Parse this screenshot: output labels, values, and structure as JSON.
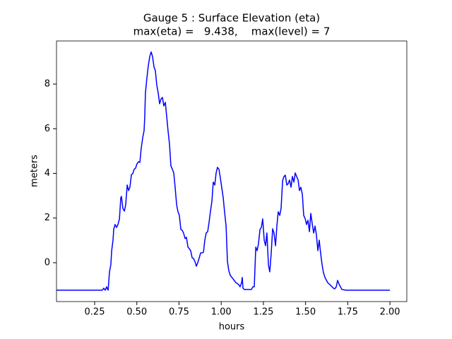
{
  "chart_data": {
    "type": "line",
    "title": "Gauge 5 : Surface Elevation (eta)",
    "subtitle": "max(eta) =   9.438,    max(level) = 7",
    "xlabel": "hours",
    "ylabel": "meters",
    "xlim": [
      0.024,
      2.1
    ],
    "ylim": [
      -1.74,
      9.93
    ],
    "xticks": [
      0.25,
      {
        "value": 0.5,
        "label": "0.50"
      },
      0.75,
      {
        "value": 1.0,
        "label": "1.00"
      },
      1.25,
      {
        "value": 1.5,
        "label": "1.50"
      },
      1.75,
      {
        "value": 2.0,
        "label": "2.00"
      }
    ],
    "yticks": [
      0,
      2,
      4,
      6,
      8
    ],
    "grid": false,
    "x": [
      0.024,
      0.296,
      0.304,
      0.313,
      0.321,
      0.33,
      0.338,
      0.346,
      0.351,
      0.359,
      0.363,
      0.371,
      0.38,
      0.388,
      0.397,
      0.405,
      0.409,
      0.417,
      0.426,
      0.434,
      0.443,
      0.451,
      0.459,
      0.468,
      0.476,
      0.484,
      0.493,
      0.501,
      0.51,
      0.518,
      0.526,
      0.535,
      0.543,
      0.547,
      0.551,
      0.56,
      0.568,
      0.577,
      0.585,
      0.593,
      0.602,
      0.61,
      0.618,
      0.627,
      0.635,
      0.644,
      0.652,
      0.66,
      0.669,
      0.677,
      0.685,
      0.694,
      0.702,
      0.711,
      0.719,
      0.727,
      0.736,
      0.744,
      0.752,
      0.761,
      0.769,
      0.777,
      0.786,
      0.794,
      0.803,
      0.811,
      0.819,
      0.828,
      0.836,
      0.844,
      0.853,
      0.861,
      0.87,
      0.878,
      0.886,
      0.895,
      0.903,
      0.911,
      0.92,
      0.928,
      0.936,
      0.945,
      0.953,
      0.962,
      0.97,
      0.978,
      0.987,
      0.995,
      1.003,
      1.012,
      1.02,
      1.029,
      1.037,
      1.045,
      1.054,
      1.071,
      1.087,
      1.104,
      1.112,
      1.121,
      1.125,
      1.129,
      1.137,
      1.179,
      1.188,
      1.196,
      1.205,
      1.213,
      1.221,
      1.23,
      1.238,
      1.246,
      1.255,
      1.263,
      1.271,
      1.28,
      1.288,
      1.296,
      1.305,
      1.313,
      1.322,
      1.33,
      1.338,
      1.347,
      1.355,
      1.364,
      1.372,
      1.38,
      1.389,
      1.397,
      1.405,
      1.414,
      1.422,
      1.431,
      1.439,
      1.447,
      1.456,
      1.464,
      1.472,
      1.481,
      1.489,
      1.498,
      1.506,
      1.514,
      1.523,
      1.531,
      1.539,
      1.548,
      1.556,
      1.564,
      1.573,
      1.581,
      1.59,
      1.598,
      1.606,
      1.615,
      1.631,
      1.648,
      1.665,
      1.673,
      1.682,
      1.69,
      1.698,
      1.707,
      1.715,
      1.74,
      2.0
    ],
    "series": [
      {
        "color": "#0000ff",
        "values": [
          -1.23,
          -1.23,
          -1.14,
          -1.23,
          -1.08,
          -1.23,
          -0.41,
          -0.09,
          0.54,
          1.01,
          1.49,
          1.71,
          1.58,
          1.71,
          1.96,
          2.91,
          2.97,
          2.44,
          2.31,
          2.59,
          3.48,
          3.23,
          3.38,
          3.95,
          3.99,
          4.18,
          4.24,
          4.43,
          4.52,
          4.49,
          5.12,
          5.6,
          5.91,
          6.55,
          7.59,
          8.29,
          8.82,
          9.24,
          9.438,
          9.24,
          8.76,
          8.6,
          7.97,
          7.59,
          7.12,
          7.34,
          7.4,
          7.02,
          7.18,
          6.55,
          5.91,
          5.28,
          4.33,
          4.18,
          4.02,
          3.38,
          2.59,
          2.28,
          2.12,
          1.49,
          1.45,
          1.33,
          1.08,
          1.14,
          0.7,
          0.63,
          0.54,
          0.22,
          0.19,
          0.06,
          -0.16,
          0,
          0.22,
          0.44,
          0.44,
          0.47,
          1.01,
          1.33,
          1.39,
          1.8,
          2.28,
          2.75,
          3.61,
          3.48,
          4.02,
          4.27,
          4.18,
          3.8,
          3.38,
          2.91,
          2.28,
          1.64,
          0.06,
          -0.35,
          -0.57,
          -0.73,
          -0.89,
          -0.98,
          -1.08,
          -0.89,
          -0.66,
          -1.14,
          -1.2,
          -1.2,
          -1.08,
          -1.08,
          0.7,
          0.54,
          0.85,
          1.49,
          1.58,
          1.96,
          1.01,
          0.76,
          1.33,
          -0.09,
          -0.41,
          0.38,
          1.52,
          1.33,
          0.76,
          1.64,
          2.28,
          2.12,
          2.44,
          3.67,
          3.86,
          3.92,
          3.48,
          3.54,
          3.7,
          3.38,
          3.86,
          3.61,
          4.02,
          3.86,
          3.7,
          3.23,
          3.38,
          3.07,
          2.12,
          1.96,
          1.71,
          1.9,
          1.39,
          2.21,
          1.77,
          1.33,
          1.64,
          1.27,
          0.54,
          1.01,
          0.38,
          -0.09,
          -0.44,
          -0.66,
          -0.89,
          -1.01,
          -1.14,
          -1.17,
          -1.08,
          -0.79,
          -0.95,
          -1.08,
          -1.2,
          -1.23,
          -1.23
        ]
      }
    ]
  }
}
